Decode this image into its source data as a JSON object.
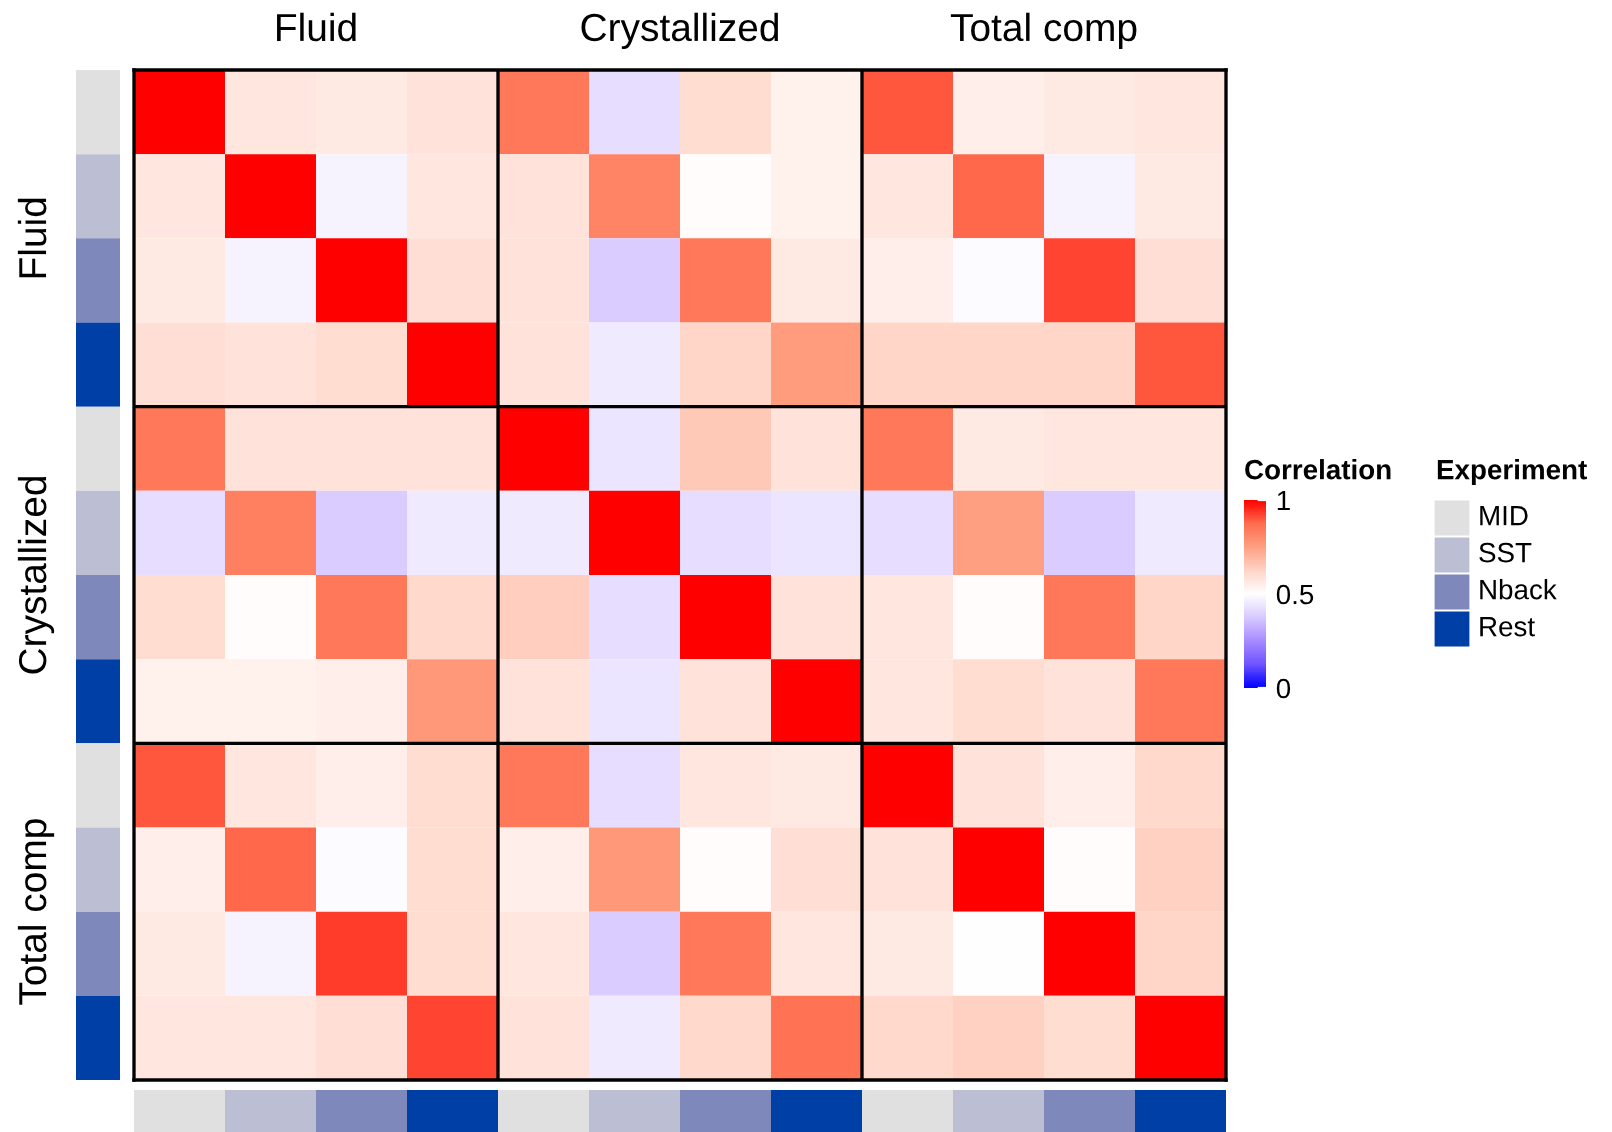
{
  "chart_data": {
    "type": "heatmap",
    "categories": [
      null,
      null,
      null,
      null,
      null,
      null,
      null,
      null,
      null,
      null,
      null,
      null
    ],
    "y_categories": [
      null,
      null,
      null,
      null,
      null,
      null,
      null,
      null,
      null,
      null,
      null,
      null
    ],
    "cells": [
      [
        1,
        0.57,
        0.56,
        0.58,
        0.85,
        0.42,
        0.6,
        0.54,
        0.9,
        0.55,
        0.56,
        0.57
      ],
      [
        0.57,
        1,
        0.47,
        0.57,
        0.58,
        0.82,
        0.51,
        0.54,
        0.57,
        0.88,
        0.47,
        0.56
      ],
      [
        0.56,
        0.47,
        1,
        0.59,
        0.58,
        0.38,
        0.85,
        0.56,
        0.55,
        0.49,
        0.92,
        0.59
      ],
      [
        0.59,
        0.58,
        0.6,
        1,
        0.58,
        0.45,
        0.62,
        0.76,
        0.62,
        0.62,
        0.62,
        0.9
      ],
      [
        0.85,
        0.58,
        0.58,
        0.58,
        1,
        0.44,
        0.65,
        0.58,
        0.85,
        0.56,
        0.57,
        0.57
      ],
      [
        0.42,
        0.83,
        0.38,
        0.45,
        0.45,
        1,
        0.42,
        0.44,
        0.42,
        0.75,
        0.38,
        0.45
      ],
      [
        0.6,
        0.51,
        0.85,
        0.61,
        0.64,
        0.42,
        1,
        0.58,
        0.57,
        0.51,
        0.85,
        0.62
      ],
      [
        0.54,
        0.54,
        0.55,
        0.77,
        0.58,
        0.44,
        0.58,
        1,
        0.57,
        0.6,
        0.58,
        0.85
      ],
      [
        0.9,
        0.57,
        0.55,
        0.6,
        0.85,
        0.42,
        0.57,
        0.56,
        1,
        0.58,
        0.55,
        0.61
      ],
      [
        0.55,
        0.88,
        0.49,
        0.6,
        0.55,
        0.77,
        0.51,
        0.59,
        0.58,
        1,
        0.51,
        0.63
      ],
      [
        0.56,
        0.47,
        0.93,
        0.6,
        0.57,
        0.38,
        0.85,
        0.57,
        0.56,
        0.5,
        1,
        0.62
      ],
      [
        0.57,
        0.57,
        0.59,
        0.92,
        0.58,
        0.45,
        0.61,
        0.86,
        0.61,
        0.63,
        0.6,
        1
      ]
    ],
    "clim": [
      0,
      1
    ],
    "cticks": [
      0,
      0.5,
      1
    ],
    "clabel": "Correlation",
    "legend_title": "Experiment",
    "annotations": [
      "Fluid",
      "Crystallized",
      "Total comp",
      "Fluid",
      "Crystallized",
      "Total comp",
      "MID",
      "SST",
      "Nback",
      "Rest"
    ]
  }
}
